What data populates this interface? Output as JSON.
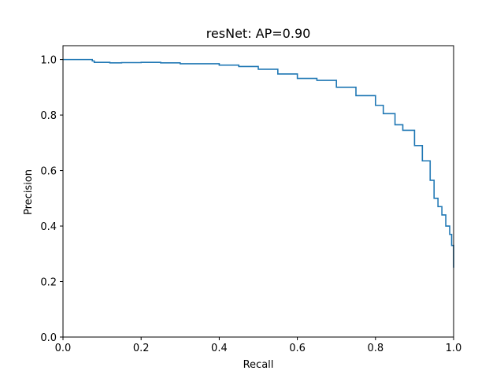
{
  "chart_data": {
    "type": "line",
    "title": "resNet: AP=0.90",
    "xlabel": "Recall",
    "ylabel": "Precision",
    "xlim": [
      0.0,
      1.0
    ],
    "ylim": [
      0.0,
      1.05
    ],
    "xticks": [
      "0.0",
      "0.2",
      "0.4",
      "0.6",
      "0.8",
      "1.0"
    ],
    "yticks": [
      "0.0",
      "0.2",
      "0.4",
      "0.6",
      "0.8",
      "1.0"
    ],
    "grid": false,
    "colors": {
      "line": "#1f77b4",
      "axes": "#000000",
      "background": "#ffffff"
    },
    "series": [
      {
        "x": [
          0.0,
          0.02,
          0.05,
          0.07,
          0.075,
          0.08,
          0.1,
          0.12,
          0.15,
          0.2,
          0.25,
          0.3,
          0.35,
          0.4,
          0.45,
          0.5,
          0.55,
          0.6,
          0.65,
          0.7,
          0.75,
          0.8,
          0.82,
          0.85,
          0.87,
          0.9,
          0.92,
          0.94,
          0.95,
          0.96,
          0.97,
          0.98,
          0.99,
          0.995,
          1.0
        ],
        "y": [
          1.0,
          1.0,
          1.0,
          1.0,
          0.995,
          0.99,
          0.99,
          0.988,
          0.989,
          0.99,
          0.988,
          0.985,
          0.985,
          0.98,
          0.975,
          0.965,
          0.948,
          0.932,
          0.925,
          0.9,
          0.87,
          0.835,
          0.805,
          0.765,
          0.745,
          0.69,
          0.635,
          0.565,
          0.5,
          0.47,
          0.44,
          0.4,
          0.37,
          0.33,
          0.25
        ]
      }
    ]
  }
}
